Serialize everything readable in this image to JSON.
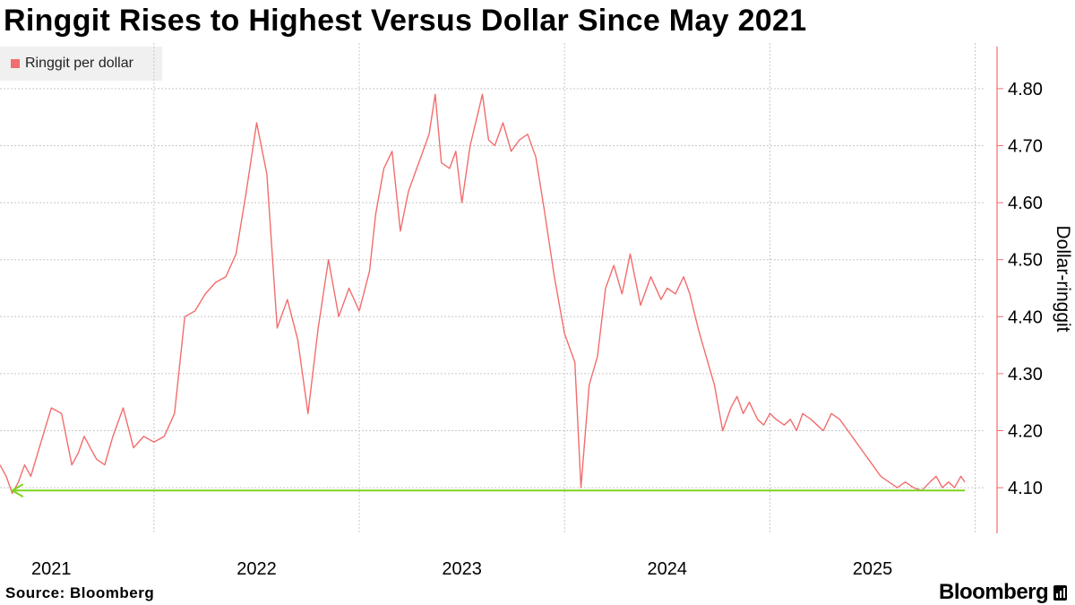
{
  "title": "Ringgit Rises to Highest Versus Dollar Since May 2021",
  "source": "Source: Bloomberg",
  "brand": "Bloomberg",
  "colors": {
    "series": "#f26d6d",
    "highlight": "#7ed321",
    "grid": "#c8c8c8",
    "legend_bg": "#f0f0f0"
  },
  "chart_data": {
    "type": "line",
    "title": "Ringgit Rises to Highest Versus Dollar Since May 2021",
    "xlabel": "",
    "ylabel": "Dollar-ringgit",
    "y_axis_side": "right",
    "ylim": [
      4.02,
      4.88
    ],
    "xlim": [
      2020.75,
      2025.55
    ],
    "yticks": [
      4.1,
      4.2,
      4.3,
      4.4,
      4.5,
      4.6,
      4.7,
      4.8
    ],
    "ytick_labels": [
      "4.10",
      "4.20",
      "4.30",
      "4.40",
      "4.50",
      "4.60",
      "4.70",
      "4.80"
    ],
    "xtick_labels": [
      "2021",
      "2022",
      "2023",
      "2024",
      "2025"
    ],
    "xtick_positions": [
      2021.0,
      2022.0,
      2023.0,
      2024.0,
      2025.0
    ],
    "grid": true,
    "legend": {
      "position": "top-left",
      "entries": [
        "Ringgit per dollar"
      ]
    },
    "series": [
      {
        "name": "Ringgit per dollar",
        "x": [
          2020.75,
          2020.78,
          2020.81,
          2020.84,
          2020.87,
          2020.9,
          2020.95,
          2021.0,
          2021.05,
          2021.1,
          2021.13,
          2021.16,
          2021.19,
          2021.22,
          2021.26,
          2021.3,
          2021.35,
          2021.4,
          2021.45,
          2021.5,
          2021.55,
          2021.6,
          2021.65,
          2021.7,
          2021.75,
          2021.8,
          2021.85,
          2021.9,
          2021.95,
          2022.0,
          2022.05,
          2022.1,
          2022.15,
          2022.2,
          2022.25,
          2022.3,
          2022.35,
          2022.4,
          2022.45,
          2022.5,
          2022.55,
          2022.58,
          2022.62,
          2022.66,
          2022.7,
          2022.74,
          2022.78,
          2022.8,
          2022.84,
          2022.87,
          2022.9,
          2022.94,
          2022.97,
          2023.0,
          2023.04,
          2023.08,
          2023.1,
          2023.13,
          2023.16,
          2023.2,
          2023.24,
          2023.28,
          2023.32,
          2023.36,
          2023.4,
          2023.45,
          2023.5,
          2023.55,
          2023.58,
          2023.62,
          2023.66,
          2023.7,
          2023.74,
          2023.78,
          2023.82,
          2023.87,
          2023.92,
          2023.97,
          2024.0,
          2024.04,
          2024.08,
          2024.11,
          2024.15,
          2024.19,
          2024.23,
          2024.27,
          2024.31,
          2024.34,
          2024.37,
          2024.4,
          2024.44,
          2024.47,
          2024.5,
          2024.53,
          2024.57,
          2024.6,
          2024.63,
          2024.66,
          2024.7,
          2024.73,
          2024.76,
          2024.8,
          2024.84,
          2024.88,
          2024.92,
          2024.96,
          2025.0,
          2025.04,
          2025.08,
          2025.12,
          2025.16,
          2025.2,
          2025.24,
          2025.28,
          2025.31,
          2025.34,
          2025.37,
          2025.4,
          2025.43,
          2025.45
        ],
        "values": [
          4.14,
          4.12,
          4.09,
          4.11,
          4.14,
          4.12,
          4.18,
          4.24,
          4.23,
          4.14,
          4.16,
          4.19,
          4.17,
          4.15,
          4.14,
          4.19,
          4.24,
          4.17,
          4.19,
          4.18,
          4.19,
          4.23,
          4.4,
          4.41,
          4.44,
          4.46,
          4.47,
          4.51,
          4.62,
          4.74,
          4.65,
          4.38,
          4.43,
          4.36,
          4.23,
          4.38,
          4.5,
          4.4,
          4.45,
          4.41,
          4.48,
          4.58,
          4.66,
          4.69,
          4.55,
          4.62,
          4.66,
          4.68,
          4.72,
          4.79,
          4.67,
          4.66,
          4.69,
          4.6,
          4.7,
          4.76,
          4.79,
          4.71,
          4.7,
          4.74,
          4.69,
          4.71,
          4.72,
          4.68,
          4.59,
          4.47,
          4.37,
          4.32,
          4.1,
          4.28,
          4.33,
          4.45,
          4.49,
          4.44,
          4.51,
          4.42,
          4.47,
          4.43,
          4.45,
          4.44,
          4.47,
          4.44,
          4.38,
          4.33,
          4.28,
          4.2,
          4.24,
          4.26,
          4.23,
          4.25,
          4.22,
          4.21,
          4.23,
          4.22,
          4.21,
          4.22,
          4.2,
          4.23,
          4.22,
          4.21,
          4.2,
          4.23,
          4.22,
          4.2,
          4.18,
          4.16,
          4.14,
          4.12,
          4.11,
          4.1,
          4.11,
          4.1,
          4.095,
          4.11,
          4.12,
          4.1,
          4.11,
          4.1,
          4.12,
          4.11
        ]
      }
    ],
    "annotations": [
      {
        "type": "arrow-line",
        "y": 4.095,
        "from_x": 2025.45,
        "to_x": 2020.81,
        "color": "#7ed321"
      }
    ]
  }
}
